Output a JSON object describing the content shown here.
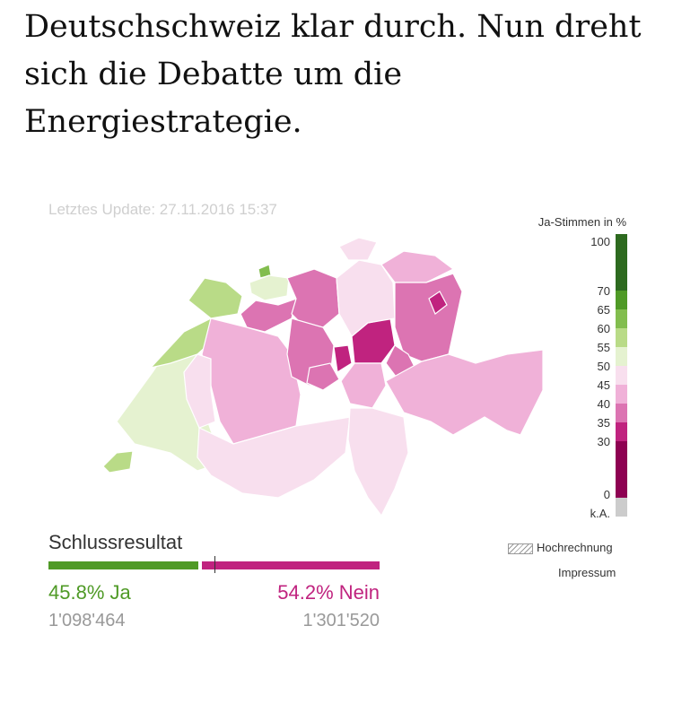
{
  "headline": "Deutschschweiz klar durch. Nun dreht sich die Debatte um die Energiestrategie.",
  "update": "Letztes Update: 27.11.2016 15:37",
  "legend": {
    "title": "Ja-Stimmen in %",
    "ticks": [
      "100",
      "70",
      "65",
      "60",
      "55",
      "50",
      "45",
      "40",
      "35",
      "30",
      "0",
      "k.A."
    ],
    "colors": [
      "#2d6a1f",
      "#4f9a26",
      "#82bd4e",
      "#b9db87",
      "#e5f2d0",
      "#f8dfee",
      "#f0b1d8",
      "#dc74b2",
      "#c0237f",
      "#8e0152",
      "#cccccc"
    ]
  },
  "map": {
    "regions": [
      "Jura",
      "Basel-Stadt",
      "Basel-Landschaft",
      "Schaffhausen",
      "Thurgau",
      "Zürich",
      "Aargau",
      "Solothurn",
      "St. Gallen",
      "Appenzell Innerrhoden",
      "Appenzell Ausserrhoden",
      "Luzern",
      "Zug",
      "Schwyz",
      "Glarus",
      "Graubünden",
      "Bern",
      "Neuchâtel",
      "Fribourg",
      "Vaud",
      "Genève",
      "Valais",
      "Ticino",
      "Uri",
      "Obwalden",
      "Nidwalden"
    ]
  },
  "result": {
    "title": "Schlussresultat",
    "ja_pct_label": "45.8% Ja",
    "nein_pct_label": "54.2% Nein",
    "ja_count": "1'098'464",
    "nein_count": "1'301'520",
    "ja_share": 45.8,
    "nein_share": 54.2,
    "ja_color": "#4f9a26",
    "nein_color": "#c0237f"
  },
  "hochrechnung": "Hochrechnung",
  "impressum": "Impressum"
}
